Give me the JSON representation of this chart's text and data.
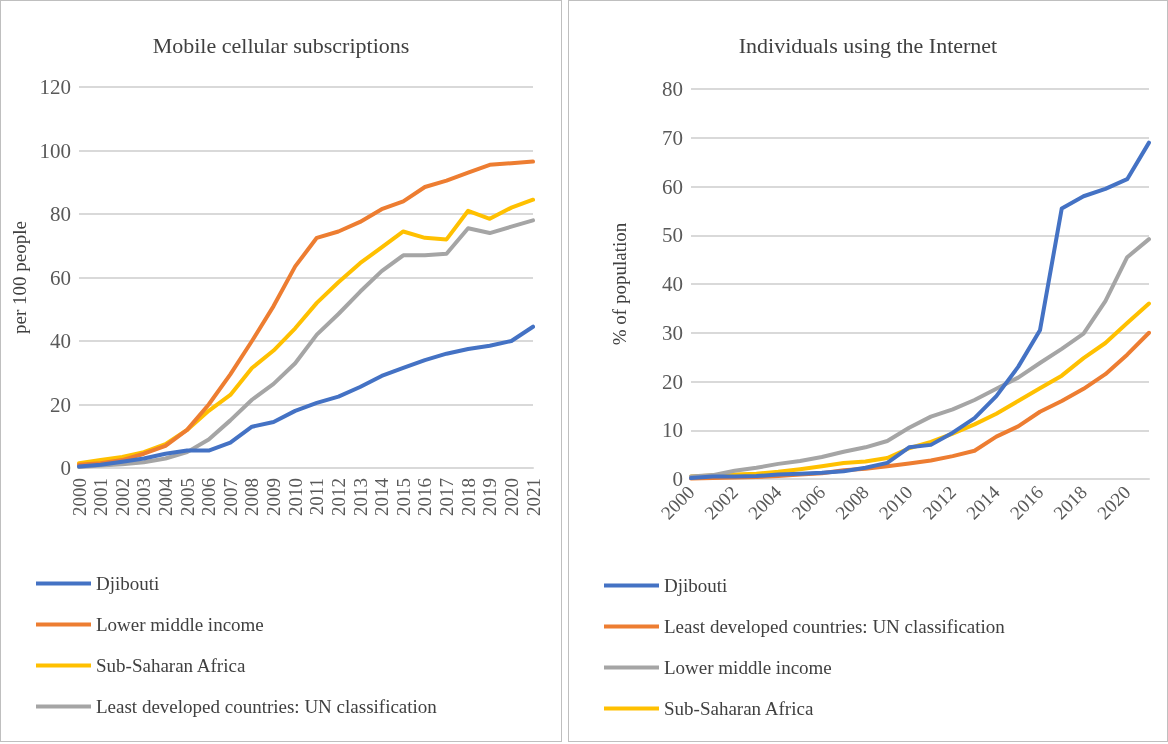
{
  "chart_data": [
    {
      "type": "line",
      "title": "Mobile cellular subscriptions",
      "ylabel": "per 100 people",
      "categories": [
        "2000",
        "2001",
        "2002",
        "2003",
        "2004",
        "2005",
        "2006",
        "2007",
        "2008",
        "2009",
        "2010",
        "2011",
        "2012",
        "2013",
        "2014",
        "2015",
        "2016",
        "2017",
        "2018",
        "2019",
        "2020",
        "2021"
      ],
      "series": [
        {
          "name": "Djibouti",
          "color": "#4472c4",
          "values": [
            0.5,
            1,
            2,
            3,
            4.5,
            5.5,
            5.5,
            8,
            13,
            14.5,
            18,
            20.5,
            22.5,
            25.5,
            29,
            31.5,
            34,
            36,
            37.5,
            38.5,
            40,
            44.5
          ]
        },
        {
          "name": "Lower middle income",
          "color": "#ed7d31",
          "values": [
            1,
            1.5,
            2.5,
            4.5,
            7,
            12,
            20,
            29.5,
            40,
            51,
            63.5,
            72.5,
            74.5,
            77.5,
            81.5,
            84,
            88.5,
            90.5,
            93,
            95.5,
            96,
            96.5
          ]
        },
        {
          "name": "Sub-Saharan Africa",
          "color": "#ffc000",
          "values": [
            1.5,
            2.5,
            3.5,
            5,
            7.5,
            12,
            18,
            23,
            31.5,
            37,
            44,
            52,
            58.5,
            64.5,
            69.5,
            74.5,
            72.5,
            72,
            81,
            78.5,
            82,
            84.5
          ]
        },
        {
          "name": "Least developed countries: UN classification",
          "color": "#a5a5a5",
          "values": [
            0.3,
            0.8,
            1.2,
            1.8,
            3,
            5,
            9,
            15,
            21.5,
            26.5,
            33,
            42,
            48.5,
            55.5,
            62,
            67,
            67,
            67.5,
            75.5,
            74,
            76,
            78
          ]
        }
      ],
      "ylim": [
        0,
        120
      ],
      "yticks": [
        0,
        20,
        40,
        60,
        80,
        100,
        120
      ],
      "grid": "y",
      "legend": "bottom left",
      "marker": "none",
      "line_style": "solid"
    },
    {
      "type": "line",
      "title": "Individuals using the Internet",
      "ylabel": "% of population",
      "categories": [
        "2000",
        null,
        "2002",
        null,
        "2004",
        null,
        "2006",
        null,
        "2008",
        null,
        "2010",
        null,
        "2012",
        null,
        "2014",
        null,
        "2016",
        null,
        "2018",
        null,
        "2020",
        null
      ],
      "series": [
        {
          "name": "Djibouti",
          "color": "#4472c4",
          "values": [
            0.2,
            0.5,
            0.5,
            0.6,
            0.9,
            1.1,
            1.3,
            1.6,
            2.3,
            3.3,
            6.5,
            7,
            9.5,
            12.5,
            17,
            23,
            30.5,
            55.5,
            58,
            59.5,
            61.5,
            69
          ]
        },
        {
          "name": "Least developed countries: UN classification",
          "color": "#ed7d31",
          "values": [
            0.1,
            0.2,
            0.3,
            0.4,
            0.6,
            0.9,
            1.2,
            1.8,
            2.1,
            2.6,
            3.2,
            3.8,
            4.7,
            5.8,
            8.7,
            10.8,
            13.8,
            16,
            18.5,
            21.5,
            25.5,
            30
          ]
        },
        {
          "name": "Lower middle income",
          "color": "#a5a5a5",
          "values": [
            0.5,
            0.8,
            1.7,
            2.3,
            3.1,
            3.7,
            4.5,
            5.6,
            6.5,
            7.8,
            10.5,
            12.8,
            14.3,
            16.2,
            18.5,
            20.8,
            23.8,
            26.7,
            29.8,
            36.5,
            45.5,
            49.2
          ]
        },
        {
          "name": "Sub-Saharan Africa",
          "color": "#ffc000",
          "values": [
            0.5,
            0.7,
            0.9,
            1.1,
            1.5,
            2,
            2.6,
            3.3,
            3.6,
            4.3,
            6.3,
            7.6,
            9.3,
            11.2,
            13.4,
            16,
            18.6,
            21.2,
            24.8,
            27.9,
            32,
            36
          ]
        }
      ],
      "ylim": [
        0,
        80
      ],
      "yticks": [
        0,
        10,
        20,
        30,
        40,
        50,
        60,
        70,
        80
      ],
      "grid": "y",
      "legend": "bottom left",
      "marker": "none",
      "line_style": "solid"
    }
  ]
}
